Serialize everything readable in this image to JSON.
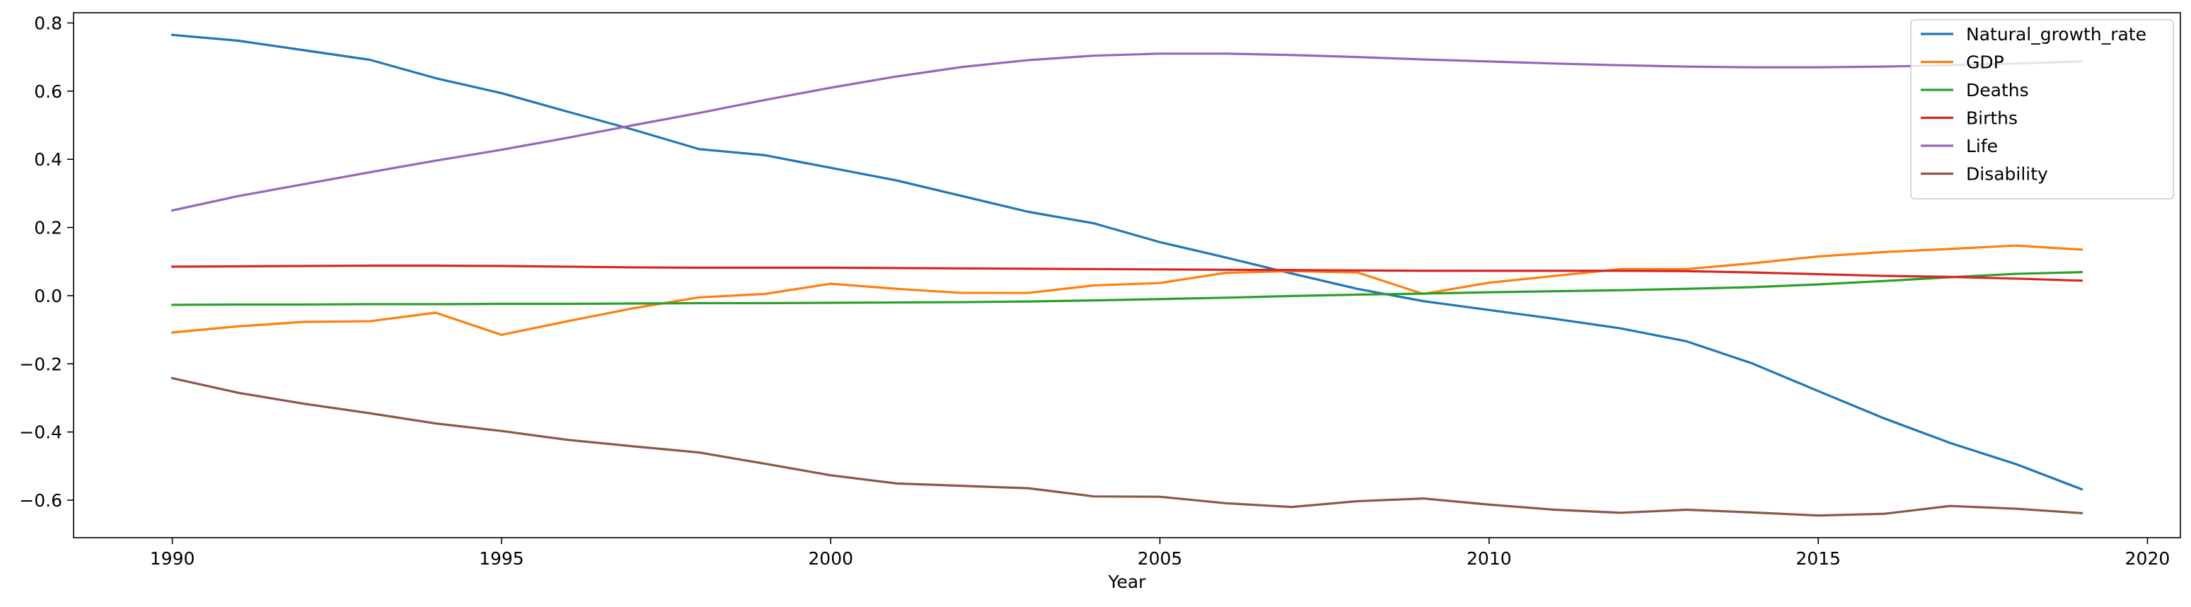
{
  "chart_data": {
    "type": "line",
    "title": "",
    "xlabel": "Year",
    "ylabel": "",
    "xlim": [
      1988.5,
      2020.5
    ],
    "ylim": [
      -0.71,
      0.83
    ],
    "xticks": [
      1990,
      1995,
      2000,
      2005,
      2010,
      2015,
      2020
    ],
    "yticks": [
      -0.6,
      -0.4,
      -0.2,
      0.0,
      0.2,
      0.4,
      0.6,
      0.8
    ],
    "ytick_labels": [
      "−0.6",
      "−0.4",
      "−0.2",
      "0.0",
      "0.2",
      "0.4",
      "0.6",
      "0.8"
    ],
    "grid": false,
    "legend_position": "top-right",
    "x": [
      1990,
      1991,
      1992,
      1993,
      1994,
      1995,
      1996,
      1997,
      1998,
      1999,
      2000,
      2001,
      2002,
      2003,
      2004,
      2005,
      2006,
      2007,
      2008,
      2009,
      2010,
      2011,
      2012,
      2013,
      2014,
      2015,
      2016,
      2017,
      2018,
      2019
    ],
    "series": [
      {
        "name": "Natural_growth_rate",
        "color": "#1f77b4",
        "values": [
          0.765,
          0.748,
          0.72,
          0.692,
          0.638,
          0.594,
          0.54,
          0.487,
          0.43,
          0.412,
          0.375,
          0.338,
          0.292,
          0.246,
          0.212,
          0.157,
          0.112,
          0.065,
          0.02,
          -0.016,
          -0.042,
          -0.068,
          -0.096,
          -0.134,
          -0.199,
          -0.28,
          -0.36,
          -0.432,
          -0.494,
          -0.568
        ]
      },
      {
        "name": "GDP",
        "color": "#ff7f0e",
        "values": [
          -0.108,
          -0.09,
          -0.077,
          -0.075,
          -0.05,
          -0.115,
          -0.075,
          -0.037,
          -0.005,
          0.005,
          0.035,
          0.02,
          0.008,
          0.008,
          0.03,
          0.037,
          0.067,
          0.072,
          0.068,
          0.005,
          0.038,
          0.058,
          0.078,
          0.078,
          0.095,
          0.115,
          0.128,
          0.137,
          0.147,
          0.135
        ]
      },
      {
        "name": "Deaths",
        "color": "#2ca02c",
        "values": [
          -0.027,
          -0.026,
          -0.026,
          -0.025,
          -0.025,
          -0.024,
          -0.024,
          -0.023,
          -0.022,
          -0.022,
          -0.021,
          -0.02,
          -0.019,
          -0.017,
          -0.014,
          -0.01,
          -0.006,
          -0.001,
          0.003,
          0.006,
          0.01,
          0.013,
          0.016,
          0.02,
          0.025,
          0.033,
          0.043,
          0.054,
          0.064,
          0.069
        ]
      },
      {
        "name": "Births",
        "color": "#d62728",
        "values": [
          0.085,
          0.086,
          0.087,
          0.088,
          0.088,
          0.087,
          0.085,
          0.083,
          0.082,
          0.082,
          0.082,
          0.081,
          0.08,
          0.079,
          0.078,
          0.077,
          0.076,
          0.075,
          0.074,
          0.073,
          0.073,
          0.073,
          0.073,
          0.072,
          0.068,
          0.063,
          0.058,
          0.055,
          0.05,
          0.044
        ]
      },
      {
        "name": "Life",
        "color": "#9467bd",
        "values": [
          0.25,
          0.292,
          0.327,
          0.362,
          0.396,
          0.428,
          0.463,
          0.5,
          0.536,
          0.574,
          0.61,
          0.643,
          0.671,
          0.691,
          0.704,
          0.71,
          0.71,
          0.706,
          0.7,
          0.693,
          0.687,
          0.681,
          0.676,
          0.672,
          0.67,
          0.67,
          0.672,
          0.676,
          0.681,
          0.687
        ]
      },
      {
        "name": "Disability",
        "color": "#8c564b",
        "values": [
          -0.242,
          -0.285,
          -0.317,
          -0.345,
          -0.375,
          -0.397,
          -0.423,
          -0.442,
          -0.46,
          -0.493,
          -0.527,
          -0.551,
          -0.558,
          -0.565,
          -0.589,
          -0.59,
          -0.609,
          -0.62,
          -0.603,
          -0.595,
          -0.613,
          -0.628,
          -0.637,
          -0.628,
          -0.636,
          -0.645,
          -0.64,
          -0.617,
          -0.625,
          -0.638
        ]
      }
    ]
  }
}
